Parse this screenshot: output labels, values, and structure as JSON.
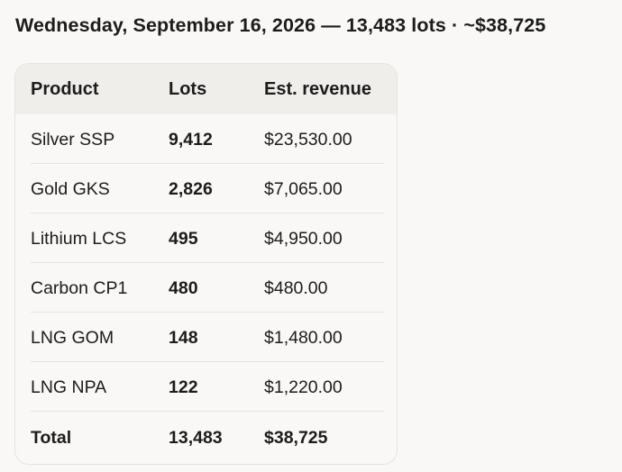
{
  "headline": "Wednesday, September 16, 2026 — 13,483 lots · ~$38,725",
  "table": {
    "headers": {
      "product": "Product",
      "lots": "Lots",
      "revenue": "Est. revenue"
    },
    "rows": [
      {
        "product": "Silver SSP",
        "lots": "9,412",
        "revenue": "$23,530.00"
      },
      {
        "product": "Gold GKS",
        "lots": "2,826",
        "revenue": "$7,065.00"
      },
      {
        "product": "Lithium LCS",
        "lots": "495",
        "revenue": "$4,950.00"
      },
      {
        "product": "Carbon CP1",
        "lots": "480",
        "revenue": "$480.00"
      },
      {
        "product": "LNG GOM",
        "lots": "148",
        "revenue": "$1,480.00"
      },
      {
        "product": "LNG NPA",
        "lots": "122",
        "revenue": "$1,220.00"
      }
    ],
    "total": {
      "product": "Total",
      "lots": "13,483",
      "revenue": "$38,725"
    }
  }
}
